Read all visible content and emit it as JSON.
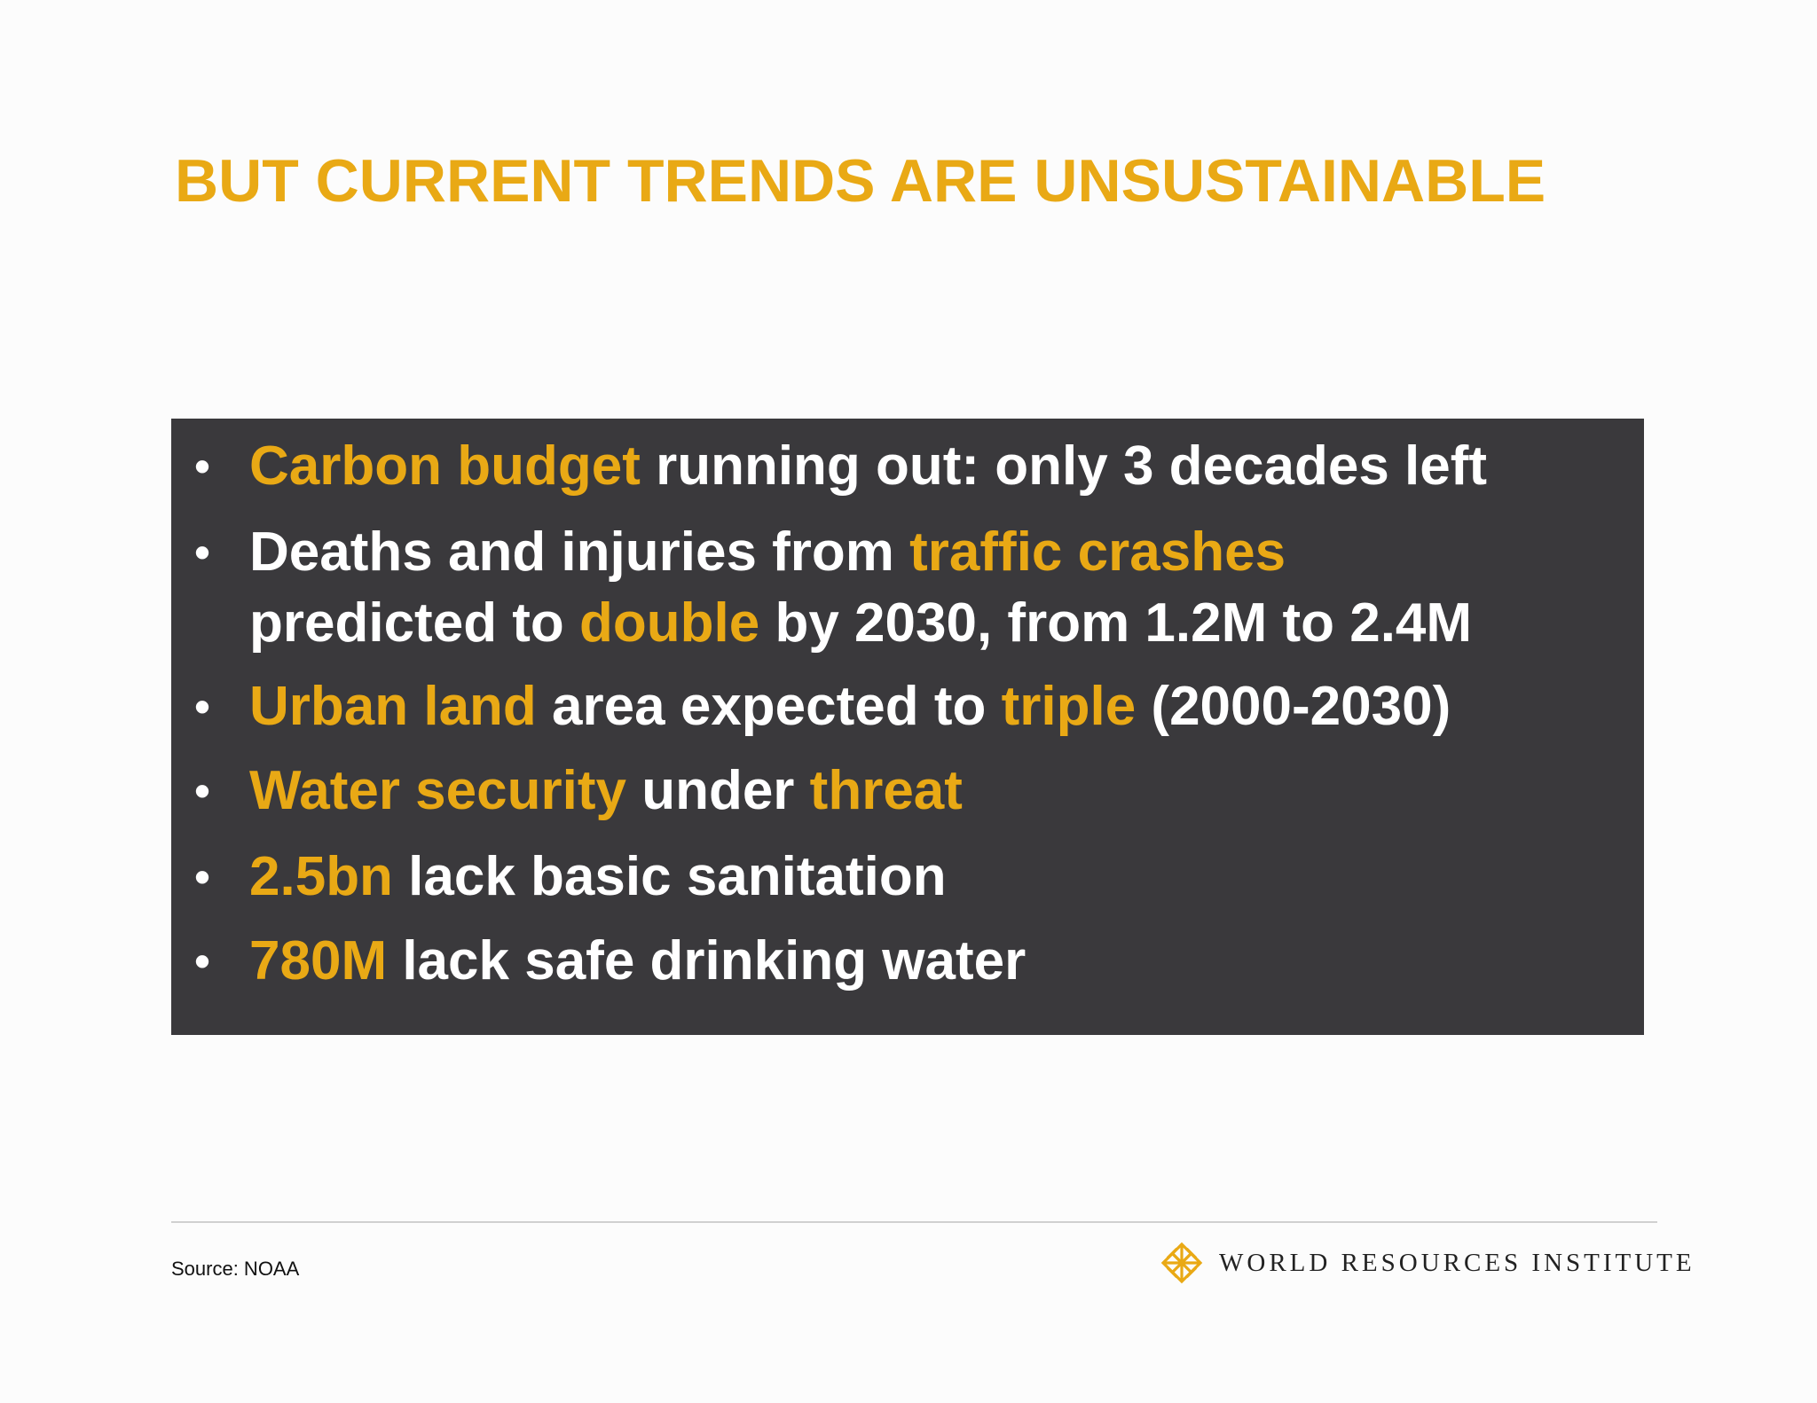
{
  "slide": {
    "title": "BUT CURRENT TRENDS ARE UNSUSTAINABLE",
    "bullet_glyph": "•",
    "accent_color": "#e9a915",
    "panel_color": "#3a393c",
    "bullets": [
      {
        "line1": [
          {
            "text": "Carbon budget",
            "highlight": true
          },
          {
            "text": " running out: only 3 decades left",
            "highlight": false
          }
        ]
      },
      {
        "line1": [
          {
            "text": "Deaths and injuries from ",
            "highlight": false
          },
          {
            "text": "traffic crashes",
            "highlight": true
          }
        ],
        "line2": [
          {
            "text": "predicted to ",
            "highlight": false
          },
          {
            "text": "double",
            "highlight": true
          },
          {
            "text": " by 2030, from 1.2M to 2.4M",
            "highlight": false
          }
        ]
      },
      {
        "line1": [
          {
            "text": "Urban land",
            "highlight": true
          },
          {
            "text": " area expected to ",
            "highlight": false
          },
          {
            "text": "triple",
            "highlight": true
          },
          {
            "text": " (2000-2030)",
            "highlight": false
          }
        ]
      },
      {
        "line1": [
          {
            "text": "Water security",
            "highlight": true
          },
          {
            "text": " under ",
            "highlight": false
          },
          {
            "text": "threat",
            "highlight": true
          }
        ]
      },
      {
        "line1": [
          {
            "text": "2.5bn",
            "highlight": true
          },
          {
            "text": " lack basic sanitation",
            "highlight": false
          }
        ]
      },
      {
        "line1": [
          {
            "text": "780M",
            "highlight": true
          },
          {
            "text": " lack safe drinking water",
            "highlight": false
          }
        ]
      }
    ]
  },
  "footer": {
    "source": "Source: NOAA",
    "logo_icon": "wri-lattice-icon",
    "logo_text": "WORLD RESOURCES INSTITUTE"
  }
}
